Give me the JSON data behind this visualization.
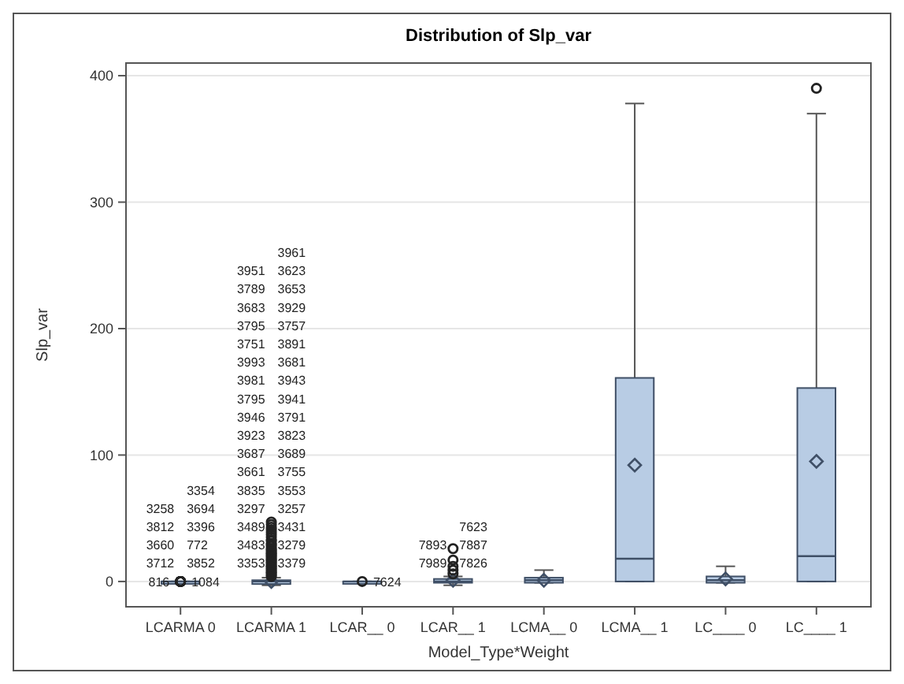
{
  "chart_data": {
    "type": "box",
    "title": "Distribution of Slp_var",
    "xlabel": "Model_Type*Weight",
    "ylabel": "Slp_var",
    "categories": [
      "LCARMA 0",
      "LCARMA 1",
      "LCAR__ 0",
      "LCAR__ 1",
      "LCMA__ 0",
      "LCMA__ 1",
      "LC____ 0",
      "LC____ 1"
    ],
    "series": [
      {
        "color": "#b8cce4",
        "boxes": [
          {
            "low": 0,
            "q1": 0,
            "median": 0,
            "q3": 0,
            "high": 0,
            "outliers": [
              0,
              0,
              0,
              0,
              0,
              0,
              0,
              0,
              0,
              0,
              0
            ]
          },
          {
            "low": -3,
            "q1": -2,
            "median": 0,
            "q3": 1,
            "high": 3,
            "mean": 0,
            "outliers": [
              4,
              5,
              6,
              7,
              8,
              9,
              10,
              11,
              12,
              13,
              14,
              15,
              16,
              17,
              18,
              19,
              20,
              21,
              22,
              23,
              24,
              25,
              26,
              28,
              29,
              30,
              32,
              33,
              35,
              37,
              39,
              41,
              43,
              45,
              47
            ]
          },
          {
            "low": 0,
            "q1": 0,
            "median": 0,
            "q3": 0,
            "high": 0,
            "outliers": [
              0
            ]
          },
          {
            "low": -3,
            "q1": -1,
            "median": 0,
            "q3": 2,
            "high": 4,
            "mean": 1,
            "outliers": [
              6,
              9,
              12,
              17,
              26
            ]
          },
          {
            "low": -1,
            "q1": -1,
            "median": 1,
            "q3": 3,
            "high": 9,
            "mean": 1
          },
          {
            "low": 0,
            "q1": 0,
            "median": 18,
            "q3": 161,
            "high": 378,
            "mean": 92
          },
          {
            "low": -1,
            "q1": -1,
            "median": 1,
            "q3": 4,
            "high": 12,
            "mean": 2
          },
          {
            "low": 0,
            "q1": 0,
            "median": 20,
            "q3": 153,
            "high": 370,
            "mean": 95,
            "outliers": [
              390
            ]
          }
        ]
      }
    ],
    "ylim": [
      -20,
      410
    ],
    "yticks": [
      0,
      100,
      200,
      300,
      400
    ],
    "grid": "y",
    "marker": "circle",
    "annotations": [
      "816",
      "1084",
      "3712",
      "3852",
      "3660",
      "772",
      "3812",
      "3396",
      "3258",
      "3694",
      "3354",
      "3353",
      "3379",
      "3483",
      "3279",
      "3489",
      "3431",
      "3297",
      "3257",
      "3835",
      "3553",
      "3661",
      "3755",
      "3687",
      "3689",
      "3923",
      "3823",
      "3946",
      "3791",
      "3795",
      "3941",
      "3981",
      "3943",
      "3993",
      "3681",
      "3751",
      "3891",
      "3795",
      "3757",
      "3683",
      "3929",
      "3789",
      "3653",
      "3951",
      "3623",
      "3961",
      "7624",
      "7989",
      "7826",
      "7893",
      "7887",
      "7623"
    ]
  }
}
